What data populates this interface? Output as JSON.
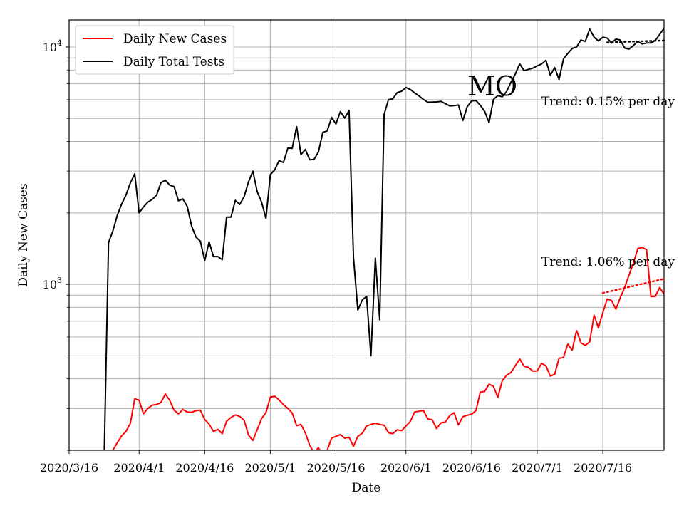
{
  "chart_data": {
    "type": "line",
    "xlabel": "Date",
    "ylabel": "Daily New Cases",
    "y_scale": "log",
    "ylim": [
      200,
      13000
    ],
    "xlim": [
      "2020-03-16",
      "2020-07-30"
    ],
    "grid": "on",
    "legend_position": "top-left",
    "x_ticks": [
      {
        "date": "2020-03-16",
        "label": "2020/3/16"
      },
      {
        "date": "2020-04-01",
        "label": "2020/4/1"
      },
      {
        "date": "2020-04-16",
        "label": "2020/4/16"
      },
      {
        "date": "2020-05-01",
        "label": "2020/5/1"
      },
      {
        "date": "2020-05-16",
        "label": "2020/5/16"
      },
      {
        "date": "2020-06-01",
        "label": "2020/6/1"
      },
      {
        "date": "2020-06-16",
        "label": "2020/6/16"
      },
      {
        "date": "2020-07-01",
        "label": "2020/7/1"
      },
      {
        "date": "2020-07-16",
        "label": "2020/7/16"
      }
    ],
    "y_major_ticks": [
      {
        "value": 1000,
        "base": "10",
        "exp": "3"
      },
      {
        "value": 10000,
        "base": "10",
        "exp": "4"
      }
    ],
    "annotations": {
      "state": "MO",
      "tests_trend": "Trend: 0.15% per day",
      "cases_trend": "Trend: 1.06% per day"
    },
    "series": [
      {
        "name": "Daily New Cases",
        "color": "#ff0000",
        "points": [
          [
            "2020-03-24",
            180
          ],
          [
            "2020-03-25",
            150
          ],
          [
            "2020-03-26",
            200
          ],
          [
            "2020-03-27",
            215
          ],
          [
            "2020-03-28",
            230
          ],
          [
            "2020-03-29",
            240
          ],
          [
            "2020-03-30",
            260
          ],
          [
            "2020-03-31",
            330
          ],
          [
            "2020-04-01",
            325
          ],
          [
            "2020-04-02",
            285
          ],
          [
            "2020-04-03",
            300
          ],
          [
            "2020-04-04",
            310
          ],
          [
            "2020-04-05",
            312
          ],
          [
            "2020-04-06",
            318
          ],
          [
            "2020-04-07",
            345
          ],
          [
            "2020-04-08",
            325
          ],
          [
            "2020-04-09",
            295
          ],
          [
            "2020-04-10",
            285
          ],
          [
            "2020-04-11",
            297
          ],
          [
            "2020-04-12",
            290
          ],
          [
            "2020-04-13",
            289
          ],
          [
            "2020-04-14",
            294
          ],
          [
            "2020-04-15",
            295
          ],
          [
            "2020-04-16",
            270
          ],
          [
            "2020-04-17",
            258
          ],
          [
            "2020-04-18",
            240
          ],
          [
            "2020-04-19",
            245
          ],
          [
            "2020-04-20",
            235
          ],
          [
            "2020-04-21",
            265
          ],
          [
            "2020-04-22",
            275
          ],
          [
            "2020-04-23",
            282
          ],
          [
            "2020-04-24",
            278
          ],
          [
            "2020-04-25",
            268
          ],
          [
            "2020-04-26",
            232
          ],
          [
            "2020-04-27",
            220
          ],
          [
            "2020-04-28",
            244
          ],
          [
            "2020-04-29",
            272
          ],
          [
            "2020-04-30",
            288
          ],
          [
            "2020-05-01",
            335
          ],
          [
            "2020-05-02",
            338
          ],
          [
            "2020-05-03",
            326
          ],
          [
            "2020-05-04",
            312
          ],
          [
            "2020-05-05",
            300
          ],
          [
            "2020-05-06",
            287
          ],
          [
            "2020-05-07",
            254
          ],
          [
            "2020-05-08",
            257
          ],
          [
            "2020-05-09",
            237
          ],
          [
            "2020-05-10",
            210
          ],
          [
            "2020-05-11",
            195
          ],
          [
            "2020-05-12",
            205
          ],
          [
            "2020-05-13",
            190
          ],
          [
            "2020-05-14",
            200
          ],
          [
            "2020-05-15",
            225
          ],
          [
            "2020-05-16",
            229
          ],
          [
            "2020-05-17",
            233
          ],
          [
            "2020-05-18",
            225
          ],
          [
            "2020-05-19",
            227
          ],
          [
            "2020-05-20",
            208
          ],
          [
            "2020-05-21",
            229
          ],
          [
            "2020-05-22",
            236
          ],
          [
            "2020-05-23",
            253
          ],
          [
            "2020-05-24",
            257
          ],
          [
            "2020-05-25",
            260
          ],
          [
            "2020-05-26",
            257
          ],
          [
            "2020-05-27",
            255
          ],
          [
            "2020-05-28",
            237
          ],
          [
            "2020-05-29",
            235
          ],
          [
            "2020-05-30",
            244
          ],
          [
            "2020-05-31",
            242
          ],
          [
            "2020-06-01",
            253
          ],
          [
            "2020-06-02",
            265
          ],
          [
            "2020-06-03",
            290
          ],
          [
            "2020-06-04",
            292
          ],
          [
            "2020-06-05",
            294
          ],
          [
            "2020-06-06",
            271
          ],
          [
            "2020-06-07",
            269
          ],
          [
            "2020-06-08",
            247
          ],
          [
            "2020-06-09",
            261
          ],
          [
            "2020-06-10",
            263
          ],
          [
            "2020-06-11",
            280
          ],
          [
            "2020-06-12",
            288
          ],
          [
            "2020-06-13",
            256
          ],
          [
            "2020-06-14",
            277
          ],
          [
            "2020-06-15",
            281
          ],
          [
            "2020-06-16",
            284
          ],
          [
            "2020-06-17",
            294
          ],
          [
            "2020-06-18",
            352
          ],
          [
            "2020-06-19",
            354
          ],
          [
            "2020-06-20",
            380
          ],
          [
            "2020-06-21",
            372
          ],
          [
            "2020-06-22",
            334
          ],
          [
            "2020-06-23",
            392
          ],
          [
            "2020-06-24",
            414
          ],
          [
            "2020-06-25",
            425
          ],
          [
            "2020-06-26",
            455
          ],
          [
            "2020-06-27",
            485
          ],
          [
            "2020-06-28",
            452
          ],
          [
            "2020-06-29",
            447
          ],
          [
            "2020-06-30",
            431
          ],
          [
            "2020-07-01",
            432
          ],
          [
            "2020-07-02",
            465
          ],
          [
            "2020-07-03",
            454
          ],
          [
            "2020-07-04",
            411
          ],
          [
            "2020-07-05",
            418
          ],
          [
            "2020-07-06",
            488
          ],
          [
            "2020-07-07",
            492
          ],
          [
            "2020-07-08",
            560
          ],
          [
            "2020-07-09",
            528
          ],
          [
            "2020-07-10",
            640
          ],
          [
            "2020-07-11",
            568
          ],
          [
            "2020-07-12",
            553
          ],
          [
            "2020-07-13",
            573
          ],
          [
            "2020-07-14",
            742
          ],
          [
            "2020-07-15",
            655
          ],
          [
            "2020-07-16",
            760
          ],
          [
            "2020-07-17",
            868
          ],
          [
            "2020-07-18",
            855
          ],
          [
            "2020-07-19",
            787
          ],
          [
            "2020-07-20",
            880
          ],
          [
            "2020-07-21",
            970
          ],
          [
            "2020-07-22",
            1095
          ],
          [
            "2020-07-23",
            1230
          ],
          [
            "2020-07-24",
            1415
          ],
          [
            "2020-07-25",
            1430
          ],
          [
            "2020-07-26",
            1400
          ],
          [
            "2020-07-27",
            890
          ],
          [
            "2020-07-28",
            890
          ],
          [
            "2020-07-29",
            970
          ],
          [
            "2020-07-30",
            910
          ],
          [
            "2020-07-31",
            840
          ]
        ]
      },
      {
        "name": "Daily Total Tests",
        "color": "#000000",
        "points": [
          [
            "2020-03-24",
            180
          ],
          [
            "2020-03-25",
            1500
          ],
          [
            "2020-03-26",
            1680
          ],
          [
            "2020-03-27",
            1950
          ],
          [
            "2020-03-28",
            2180
          ],
          [
            "2020-03-29",
            2380
          ],
          [
            "2020-03-30",
            2680
          ],
          [
            "2020-03-31",
            2920
          ],
          [
            "2020-04-01",
            2000
          ],
          [
            "2020-04-02",
            2120
          ],
          [
            "2020-04-03",
            2220
          ],
          [
            "2020-04-04",
            2280
          ],
          [
            "2020-04-05",
            2380
          ],
          [
            "2020-04-06",
            2680
          ],
          [
            "2020-04-07",
            2750
          ],
          [
            "2020-04-08",
            2620
          ],
          [
            "2020-04-09",
            2580
          ],
          [
            "2020-04-10",
            2250
          ],
          [
            "2020-04-11",
            2290
          ],
          [
            "2020-04-12",
            2130
          ],
          [
            "2020-04-13",
            1760
          ],
          [
            "2020-04-14",
            1580
          ],
          [
            "2020-04-15",
            1520
          ],
          [
            "2020-04-16",
            1260
          ],
          [
            "2020-04-17",
            1510
          ],
          [
            "2020-04-18",
            1310
          ],
          [
            "2020-04-19",
            1310
          ],
          [
            "2020-04-20",
            1270
          ],
          [
            "2020-04-21",
            1920
          ],
          [
            "2020-04-22",
            1920
          ],
          [
            "2020-04-23",
            2260
          ],
          [
            "2020-04-24",
            2170
          ],
          [
            "2020-04-25",
            2340
          ],
          [
            "2020-04-26",
            2700
          ],
          [
            "2020-04-27",
            3000
          ],
          [
            "2020-04-28",
            2460
          ],
          [
            "2020-04-29",
            2220
          ],
          [
            "2020-04-30",
            1900
          ],
          [
            "2020-05-01",
            2900
          ],
          [
            "2020-05-02",
            3040
          ],
          [
            "2020-05-03",
            3320
          ],
          [
            "2020-05-04",
            3260
          ],
          [
            "2020-05-05",
            3750
          ],
          [
            "2020-05-06",
            3740
          ],
          [
            "2020-05-07",
            4620
          ],
          [
            "2020-05-08",
            3520
          ],
          [
            "2020-05-09",
            3700
          ],
          [
            "2020-05-10",
            3350
          ],
          [
            "2020-05-11",
            3360
          ],
          [
            "2020-05-12",
            3620
          ],
          [
            "2020-05-13",
            4370
          ],
          [
            "2020-05-14",
            4430
          ],
          [
            "2020-05-15",
            5050
          ],
          [
            "2020-05-16",
            4740
          ],
          [
            "2020-05-17",
            5340
          ],
          [
            "2020-05-18",
            5020
          ],
          [
            "2020-05-19",
            5400
          ],
          [
            "2020-05-20",
            1300
          ],
          [
            "2020-05-21",
            780
          ],
          [
            "2020-05-22",
            860
          ],
          [
            "2020-05-23",
            890
          ],
          [
            "2020-05-24",
            500
          ],
          [
            "2020-05-25",
            1290
          ],
          [
            "2020-05-26",
            710
          ],
          [
            "2020-05-27",
            5200
          ],
          [
            "2020-05-28",
            6000
          ],
          [
            "2020-05-29",
            6050
          ],
          [
            "2020-05-30",
            6430
          ],
          [
            "2020-05-31",
            6510
          ],
          [
            "2020-06-01",
            6750
          ],
          [
            "2020-06-02",
            6620
          ],
          [
            "2020-06-03",
            6400
          ],
          [
            "2020-06-04",
            6220
          ],
          [
            "2020-06-05",
            6010
          ],
          [
            "2020-06-06",
            5850
          ],
          [
            "2020-06-07",
            5860
          ],
          [
            "2020-06-08",
            5870
          ],
          [
            "2020-06-09",
            5900
          ],
          [
            "2020-06-10",
            5770
          ],
          [
            "2020-06-11",
            5650
          ],
          [
            "2020-06-12",
            5660
          ],
          [
            "2020-06-13",
            5700
          ],
          [
            "2020-06-14",
            4900
          ],
          [
            "2020-06-15",
            5600
          ],
          [
            "2020-06-16",
            5930
          ],
          [
            "2020-06-17",
            5950
          ],
          [
            "2020-06-18",
            5680
          ],
          [
            "2020-06-19",
            5350
          ],
          [
            "2020-06-20",
            4800
          ],
          [
            "2020-06-21",
            6020
          ],
          [
            "2020-06-22",
            6240
          ],
          [
            "2020-06-23",
            6170
          ],
          [
            "2020-06-24",
            6490
          ],
          [
            "2020-06-25",
            7100
          ],
          [
            "2020-06-26",
            7700
          ],
          [
            "2020-06-27",
            8500
          ],
          [
            "2020-06-28",
            7950
          ],
          [
            "2020-06-29",
            8050
          ],
          [
            "2020-06-30",
            8150
          ],
          [
            "2020-07-01",
            8330
          ],
          [
            "2020-07-02",
            8480
          ],
          [
            "2020-07-03",
            8800
          ],
          [
            "2020-07-04",
            7600
          ],
          [
            "2020-07-05",
            8200
          ],
          [
            "2020-07-06",
            7300
          ],
          [
            "2020-07-07",
            8900
          ],
          [
            "2020-07-08",
            9400
          ],
          [
            "2020-07-09",
            9850
          ],
          [
            "2020-07-10",
            10000
          ],
          [
            "2020-07-11",
            10700
          ],
          [
            "2020-07-12",
            10550
          ],
          [
            "2020-07-13",
            11900
          ],
          [
            "2020-07-14",
            11000
          ],
          [
            "2020-07-15",
            10600
          ],
          [
            "2020-07-16",
            11000
          ],
          [
            "2020-07-17",
            10900
          ],
          [
            "2020-07-18",
            10400
          ],
          [
            "2020-07-19",
            10800
          ],
          [
            "2020-07-20",
            10700
          ],
          [
            "2020-07-21",
            9900
          ],
          [
            "2020-07-22",
            9800
          ],
          [
            "2020-07-23",
            10150
          ],
          [
            "2020-07-24",
            10550
          ],
          [
            "2020-07-25",
            10300
          ],
          [
            "2020-07-26",
            10400
          ],
          [
            "2020-07-27",
            10400
          ],
          [
            "2020-07-28",
            10650
          ],
          [
            "2020-07-29",
            11300
          ],
          [
            "2020-07-30",
            12000
          ]
        ]
      }
    ],
    "trend_lines": [
      {
        "of": "Daily Total Tests",
        "color": "#000000",
        "from": [
          "2020-07-17",
          10450
        ],
        "to": [
          "2020-07-30",
          10650
        ]
      },
      {
        "of": "Daily New Cases",
        "color": "#ff0000",
        "from": [
          "2020-07-16",
          920
        ],
        "to": [
          "2020-07-30",
          1055
        ]
      }
    ]
  }
}
